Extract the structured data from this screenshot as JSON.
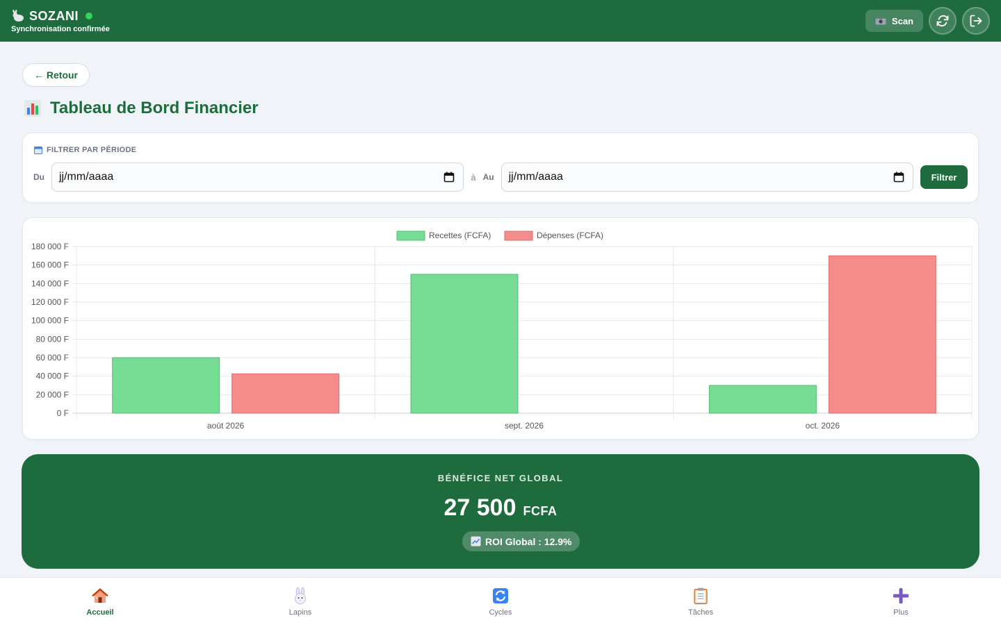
{
  "header": {
    "app_name": "SOZANI",
    "sync_status": "Synchronisation confirmée",
    "scan_label": "Scan",
    "icons": [
      "rabbit-logo-icon",
      "camera-icon",
      "refresh-icon",
      "logout-icon"
    ]
  },
  "back_label": "← Retour",
  "page_title": "Tableau de Bord Financier",
  "filter": {
    "heading": "FILTRER PAR PÉRIODE",
    "from_label": "Du",
    "from_value": "jj/mm/aaaa",
    "separator": "à",
    "to_label": "Au",
    "to_value": "jj/mm/aaaa",
    "button_label": "Filtrer"
  },
  "chart_data": {
    "type": "bar",
    "categories": [
      "août 2026",
      "sept. 2026",
      "oct. 2026"
    ],
    "series": [
      {
        "name": "Recettes (FCFA)",
        "values": [
          60000,
          150000,
          30000
        ],
        "color": "#77dd95"
      },
      {
        "name": "Dépenses (FCFA)",
        "values": [
          42500,
          0,
          170000
        ],
        "color": "#f58c8c"
      }
    ],
    "ylim": [
      0,
      180000
    ],
    "yticks": [
      0,
      20000,
      40000,
      60000,
      80000,
      100000,
      120000,
      140000,
      160000,
      180000
    ],
    "ytick_labels": [
      "0 F",
      "20 000 F",
      "40 000 F",
      "60 000 F",
      "80 000 F",
      "100 000 F",
      "120 000 F",
      "140 000 F",
      "160 000 F",
      "180 000 F"
    ],
    "legend": "top-center",
    "grid": true
  },
  "profit": {
    "label": "BÉNÉFICE NET GLOBAL",
    "value": "27 500",
    "currency": "FCFA",
    "roi": "ROI Global : 12.9%"
  },
  "nav": [
    {
      "label": "Accueil",
      "icon": "house-icon",
      "active": true
    },
    {
      "label": "Lapins",
      "icon": "rabbit-icon",
      "active": false
    },
    {
      "label": "Cycles",
      "icon": "cycle-icon",
      "active": false
    },
    {
      "label": "Tâches",
      "icon": "clipboard-icon",
      "active": false
    },
    {
      "label": "Plus",
      "icon": "plus-icon",
      "active": false
    }
  ]
}
